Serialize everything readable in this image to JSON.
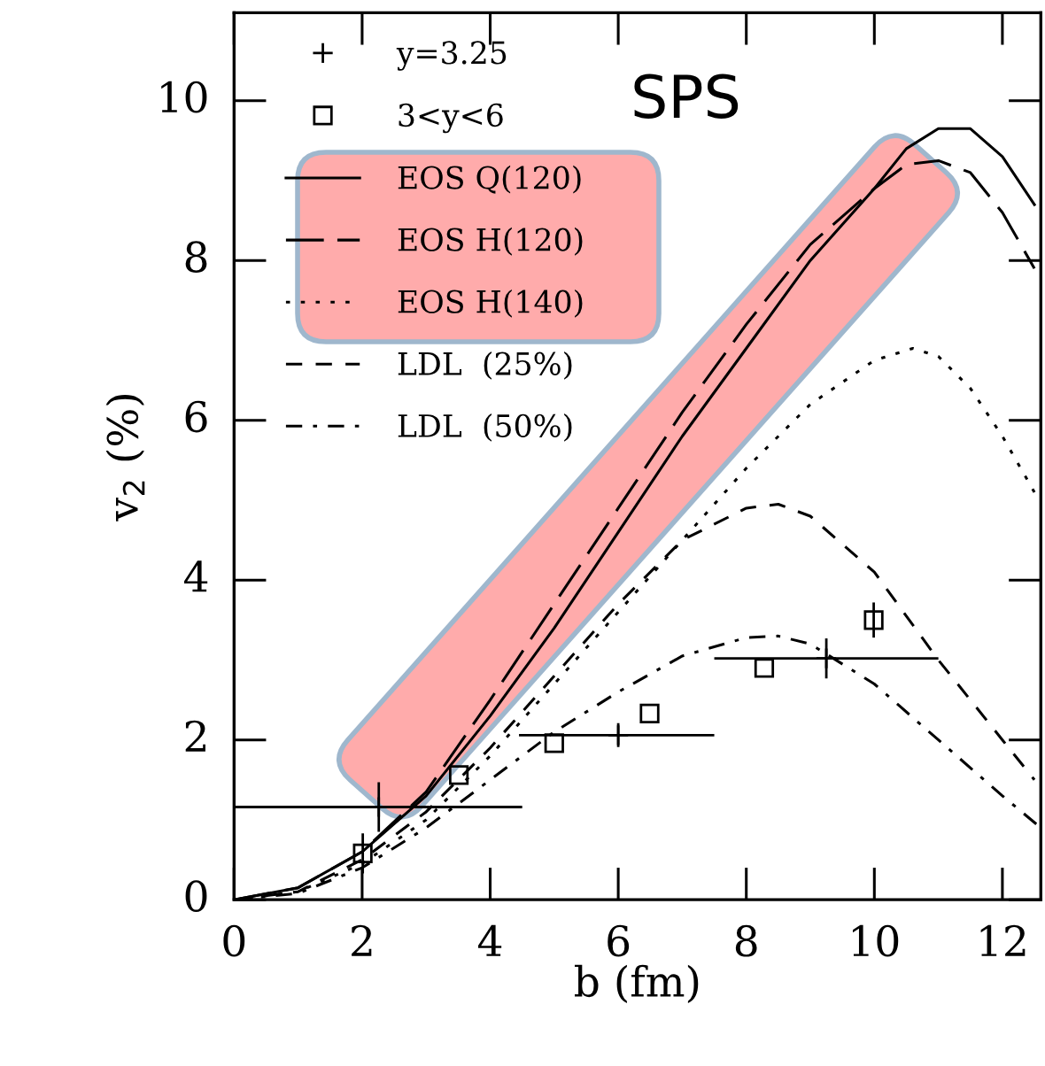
{
  "chart_data": {
    "type": "line",
    "xlabel": "b (fm)",
    "ylabel": "v$_{2}$ (%)",
    "xlim": [
      0,
      12.6
    ],
    "ylim": [
      0,
      11.1
    ],
    "xticks": [
      0,
      2,
      4,
      6,
      8,
      10,
      12
    ],
    "yticks": [
      0,
      2,
      4,
      6,
      8,
      10
    ],
    "grid": false,
    "legend": "top left",
    "annotations": [
      "SPS"
    ],
    "series": [
      {
        "name": "y=3.25",
        "type": "scatter",
        "marker": "cross",
        "color": "#000000",
        "x": [
          2.26,
          6.0,
          9.25
        ],
        "values": [
          1.16,
          2.06,
          3.02
        ],
        "errors": [
          0.31,
          0.15,
          0.25
        ],
        "xerrors": [
          [
            0,
            4.5
          ],
          [
            4.45,
            7.5
          ],
          [
            7.5,
            11.0
          ]
        ]
      },
      {
        "name": "3<y<6",
        "type": "scatter",
        "marker": "square",
        "color": "#000000",
        "x": [
          2.01,
          3.51,
          5.0,
          6.49,
          8.28,
          9.99
        ],
        "values": [
          0.58,
          1.56,
          1.96,
          2.33,
          2.9,
          3.5
        ],
        "errors": [
          0.25,
          null,
          null,
          null,
          null,
          0.22
        ]
      },
      {
        "name": "EOS Q(120)",
        "line_style": "solid",
        "color": "#000000",
        "x": [
          0,
          1,
          2,
          3,
          4,
          5,
          6,
          7,
          8,
          9,
          10,
          10.5,
          11,
          11.5,
          12,
          12.5
        ],
        "values": [
          0,
          0.15,
          0.6,
          1.3,
          2.3,
          3.4,
          4.6,
          5.8,
          6.9,
          8.0,
          8.9,
          9.4,
          9.65,
          9.65,
          9.3,
          8.7
        ]
      },
      {
        "name": "EOS H(120)",
        "line_style": "longdash",
        "color": "#000000",
        "x": [
          0,
          1,
          2,
          3,
          4,
          5,
          6,
          7,
          8,
          9,
          10,
          10.5,
          11,
          11.5,
          12,
          12.5
        ],
        "values": [
          0,
          0.15,
          0.6,
          1.35,
          2.5,
          3.7,
          4.9,
          6.1,
          7.2,
          8.2,
          8.9,
          9.2,
          9.25,
          9.1,
          8.6,
          7.9
        ]
      },
      {
        "name": "EOS H(140)",
        "line_style": "dotted",
        "color": "#000000",
        "x": [
          0,
          1,
          2,
          3,
          4,
          5,
          6,
          7,
          8,
          9,
          10,
          10.6,
          11,
          11.5,
          12,
          12.5
        ],
        "values": [
          0,
          0.1,
          0.45,
          1.0,
          1.8,
          2.7,
          3.6,
          4.5,
          5.4,
          6.2,
          6.75,
          6.9,
          6.8,
          6.4,
          5.8,
          5.1
        ]
      },
      {
        "name": "LDL  (25%)",
        "line_style": "dashed",
        "color": "#000000",
        "x": [
          0,
          1,
          2,
          3,
          4,
          5,
          6,
          7,
          8,
          8.5,
          9,
          10,
          11,
          12,
          12.5
        ],
        "values": [
          0,
          0.1,
          0.5,
          1.1,
          1.9,
          2.8,
          3.7,
          4.5,
          4.9,
          4.95,
          4.8,
          4.1,
          3.0,
          2.0,
          1.5
        ]
      },
      {
        "name": "LDL  (50%)",
        "line_style": "dashdot",
        "color": "#000000",
        "x": [
          0,
          1,
          2,
          3,
          4,
          5,
          6,
          7,
          8,
          8.5,
          9,
          10,
          11,
          12,
          12.6
        ],
        "values": [
          0,
          0.08,
          0.4,
          0.9,
          1.5,
          2.1,
          2.6,
          3.05,
          3.28,
          3.3,
          3.2,
          2.7,
          2.0,
          1.3,
          0.9
        ]
      }
    ]
  }
}
